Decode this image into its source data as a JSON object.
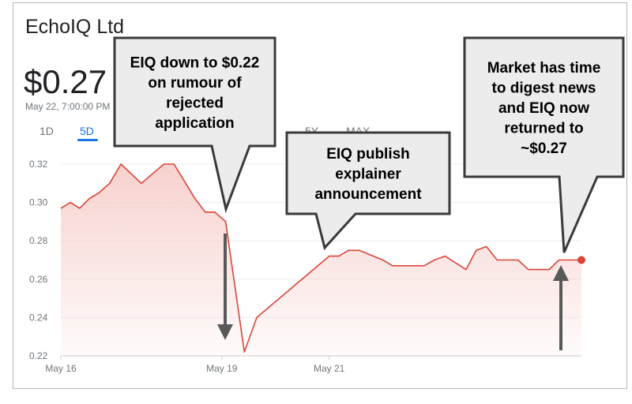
{
  "header": {
    "company": "EchoIQ Ltd",
    "price": "$0.27",
    "timestamp": "May 22, 7:00:00 PM"
  },
  "range_tabs": [
    {
      "label": "1D",
      "active": false
    },
    {
      "label": "5D",
      "active": true
    },
    {
      "label": "5Y",
      "active": false
    },
    {
      "label": "MAX",
      "active": false
    }
  ],
  "colors": {
    "line": "#db4437",
    "fill": "#f6cfcb",
    "arrow": "#595959",
    "callout_bg": "#ececec",
    "callout_border": "#3a3a3a"
  },
  "chart_data": {
    "type": "area",
    "title": "",
    "xlabel": "",
    "ylabel": "",
    "ylim": [
      0.22,
      0.33
    ],
    "yticks": [
      "0.32",
      "0.30",
      "0.28",
      "0.26",
      "0.24",
      "0.22"
    ],
    "yticks_values": [
      0.32,
      0.3,
      0.28,
      0.26,
      0.24,
      0.22
    ],
    "xticks": [
      {
        "label": "May 16",
        "x": 0
      },
      {
        "label": "May 19",
        "x": 3
      },
      {
        "label": "May 21",
        "x": 5
      }
    ],
    "xlim": [
      0,
      9.7
    ],
    "grid": "horizontal",
    "series": [
      {
        "values": [
          [
            0.0,
            0.297
          ],
          [
            0.18,
            0.3
          ],
          [
            0.35,
            0.297
          ],
          [
            0.53,
            0.302
          ],
          [
            0.71,
            0.305
          ],
          [
            0.91,
            0.31
          ],
          [
            1.12,
            0.32
          ],
          [
            1.5,
            0.31
          ],
          [
            1.92,
            0.32
          ],
          [
            2.11,
            0.32
          ],
          [
            2.5,
            0.302
          ],
          [
            2.69,
            0.295
          ],
          [
            2.87,
            0.295
          ],
          [
            3.07,
            0.29
          ],
          [
            3.42,
            0.222
          ],
          [
            3.65,
            0.24
          ],
          [
            5.0,
            0.272
          ],
          [
            5.18,
            0.272
          ],
          [
            5.36,
            0.275
          ],
          [
            5.56,
            0.275
          ],
          [
            6.0,
            0.27
          ],
          [
            6.18,
            0.267
          ],
          [
            6.77,
            0.267
          ],
          [
            6.96,
            0.27
          ],
          [
            7.16,
            0.272
          ],
          [
            7.55,
            0.265
          ],
          [
            7.74,
            0.275
          ],
          [
            7.93,
            0.277
          ],
          [
            8.13,
            0.27
          ],
          [
            8.52,
            0.27
          ],
          [
            8.71,
            0.265
          ],
          [
            9.1,
            0.265
          ],
          [
            9.28,
            0.27
          ],
          [
            9.47,
            0.27
          ],
          [
            9.7,
            0.27
          ]
        ]
      }
    ],
    "annotations": [
      {
        "text": [
          "EIQ down to $0.22",
          "on rumour of",
          "rejected",
          "application"
        ],
        "x": 3.07,
        "y": 0.29
      },
      {
        "text": [
          "EIQ publish",
          "explainer",
          "announcement"
        ],
        "x": 5.0,
        "y": 0.272
      },
      {
        "text": [
          "Market has time",
          "to digest news",
          "and EIQ now",
          "returned to",
          "~$0.27"
        ],
        "x": 9.28,
        "y": 0.27
      }
    ]
  }
}
